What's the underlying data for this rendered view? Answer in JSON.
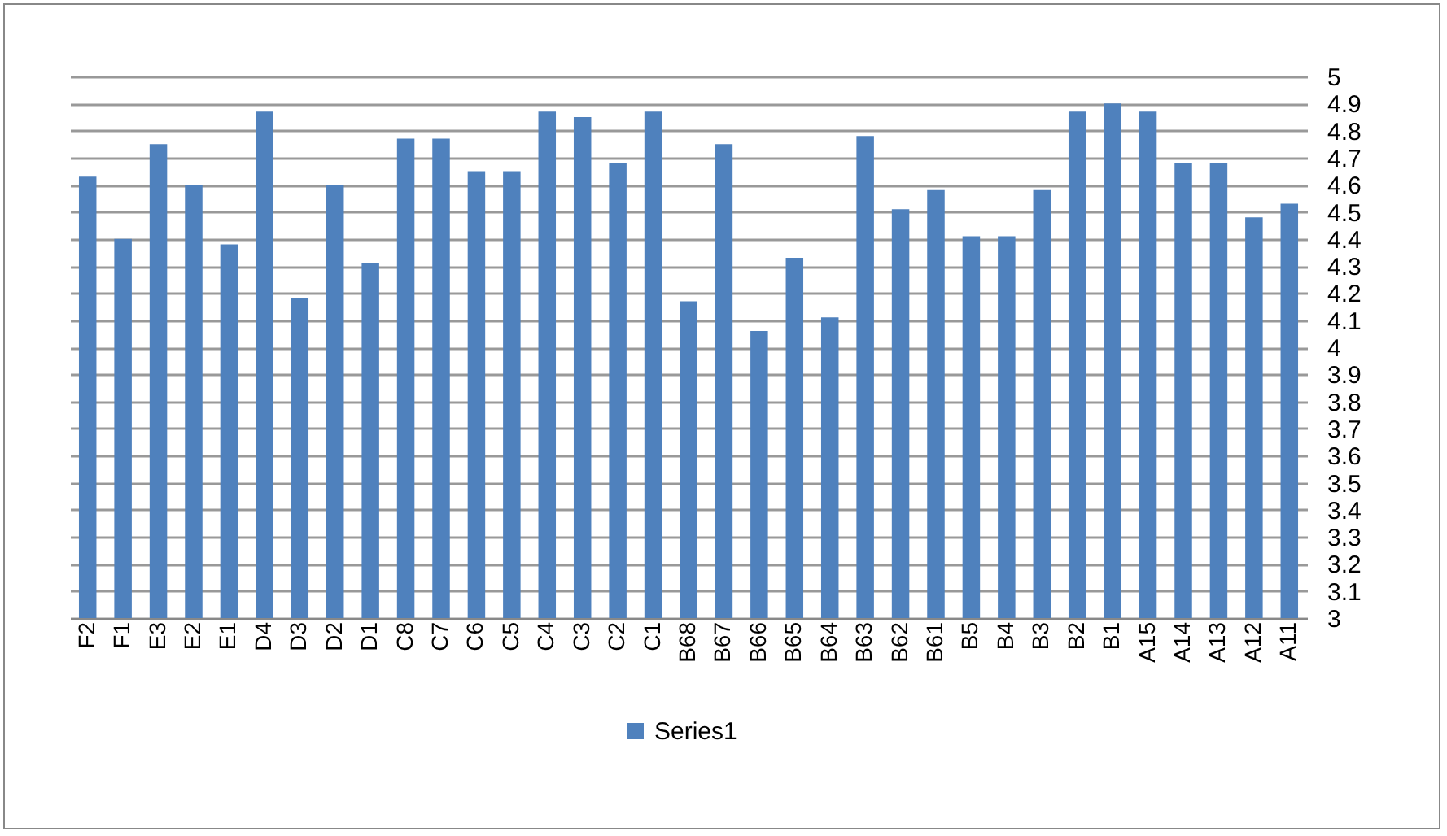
{
  "chart_data": {
    "type": "bar",
    "categories": [
      "F2",
      "F1",
      "E3",
      "E2",
      "E1",
      "D4",
      "D3",
      "D2",
      "D1",
      "C8",
      "C7",
      "C6",
      "C5",
      "C4",
      "C3",
      "C2",
      "C1",
      "B68",
      "B67",
      "B66",
      "B65",
      "B64",
      "B63",
      "B62",
      "B61",
      "B5",
      "B4",
      "B3",
      "B2",
      "B1",
      "A15",
      "A14",
      "A13",
      "A12",
      "A11"
    ],
    "series": [
      {
        "name": "Series1",
        "color": "#4f81bd",
        "values": [
          4.63,
          4.4,
          4.75,
          4.6,
          4.38,
          4.87,
          4.18,
          4.6,
          4.31,
          4.77,
          4.77,
          4.65,
          4.65,
          4.87,
          4.85,
          4.68,
          4.87,
          4.17,
          4.75,
          4.06,
          4.33,
          4.11,
          4.78,
          4.51,
          4.58,
          4.41,
          4.41,
          4.58,
          4.87,
          4.9,
          4.87,
          4.68,
          4.68,
          4.48,
          4.53
        ]
      }
    ],
    "ylim": [
      3,
      5
    ],
    "yticks": [
      3,
      3.1,
      3.2,
      3.3,
      3.4,
      3.5,
      3.6,
      3.7,
      3.8,
      3.9,
      4,
      4.1,
      4.2,
      4.3,
      4.4,
      4.5,
      4.6,
      4.7,
      4.8,
      4.9,
      5
    ],
    "grid": "y",
    "legend": "bottom"
  }
}
